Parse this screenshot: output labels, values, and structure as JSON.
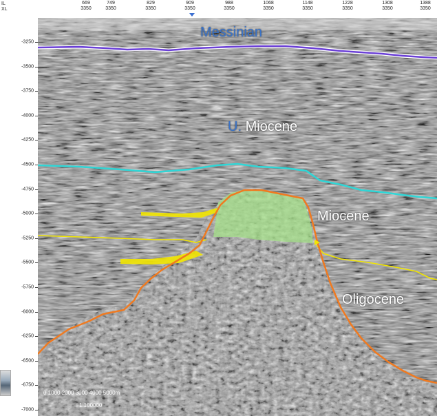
{
  "header": {
    "il_label": "IL",
    "xl_label": "XL",
    "columns": [
      {
        "il": "669",
        "xl": "3350"
      },
      {
        "il": "749",
        "xl": "3350"
      },
      {
        "il": "829",
        "xl": "3350"
      },
      {
        "il": "909",
        "xl": "3350"
      },
      {
        "il": "988",
        "xl": "3350"
      },
      {
        "il": "1068",
        "xl": "3350"
      },
      {
        "il": "1148",
        "xl": "3350"
      },
      {
        "il": "1228",
        "xl": "3350"
      },
      {
        "il": "1308",
        "xl": "3350"
      },
      {
        "il": "1388",
        "xl": "3350"
      }
    ]
  },
  "depth_axis": [
    "-3250",
    "-3500",
    "-3750",
    "-4000",
    "-4250",
    "-4500",
    "-4750",
    "-5000",
    "-5250",
    "-5500",
    "-5750",
    "-6000",
    "-6250",
    "-6500",
    "-6750",
    "-7000"
  ],
  "labels": {
    "messinian": "Messinian",
    "u_prefix": "U.",
    "u_miocene": "Miocene",
    "miocene": "Miocene",
    "oligocene": "Oligocene"
  },
  "scale": {
    "ticks": "0   1000  2000  3000  4000  5000m",
    "ratio": "1:100000"
  },
  "colors": {
    "messinian_horizon": "#6a3fd6",
    "u_miocene_horizon": "#2fd6d6",
    "miocene_horizon": "#f2e600",
    "basement_horizon": "#f07a20",
    "reservoir_fill": "#a6e28a",
    "label_blue": "#3a73c8"
  }
}
